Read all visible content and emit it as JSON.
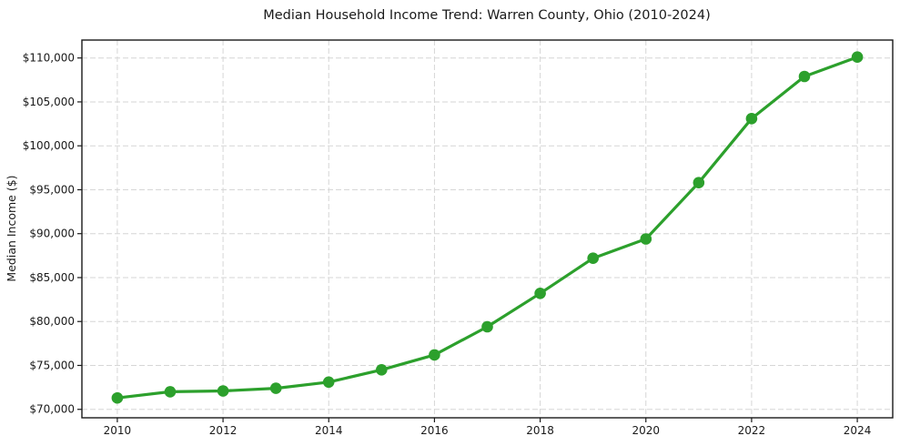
{
  "chart": {
    "title": "Median Household Income Trend: Warren County, Ohio (2010-2024)",
    "ylabel": "Median Income ($)"
  },
  "chart_data": {
    "type": "line",
    "title": "Median Household Income Trend: Warren County, Ohio (2010-2024)",
    "xlabel": "",
    "ylabel": "Median Income ($)",
    "x": [
      2010,
      2011,
      2012,
      2013,
      2014,
      2015,
      2016,
      2017,
      2018,
      2019,
      2020,
      2021,
      2022,
      2023,
      2024
    ],
    "values": [
      71300,
      72000,
      72100,
      72400,
      73100,
      74500,
      76200,
      79400,
      83200,
      87200,
      89400,
      95800,
      103100,
      107900,
      110100
    ],
    "xticks": [
      2010,
      2012,
      2014,
      2016,
      2018,
      2020,
      2022,
      2024
    ],
    "xtick_labels": [
      "2010",
      "2012",
      "2014",
      "2016",
      "2018",
      "2020",
      "2022",
      "2024"
    ],
    "yticks": [
      70000,
      75000,
      80000,
      85000,
      90000,
      95000,
      100000,
      105000,
      110000
    ],
    "ytick_labels": [
      "$70,000",
      "$75,000",
      "$80,000",
      "$85,000",
      "$90,000",
      "$95,000",
      "$100,000",
      "$105,000",
      "$110,000"
    ],
    "xlim": [
      2009.33,
      2024.67
    ],
    "ylim": [
      69040,
      112040
    ],
    "grid": true,
    "grid_style": "dashed",
    "legend": false,
    "marker": "circle",
    "line_color": "#2ca02c",
    "marker_color": "#2ca02c",
    "grid_color": "#d6d6d6",
    "spine_color": "#1a1a1a",
    "background_color": "#ffffff"
  }
}
